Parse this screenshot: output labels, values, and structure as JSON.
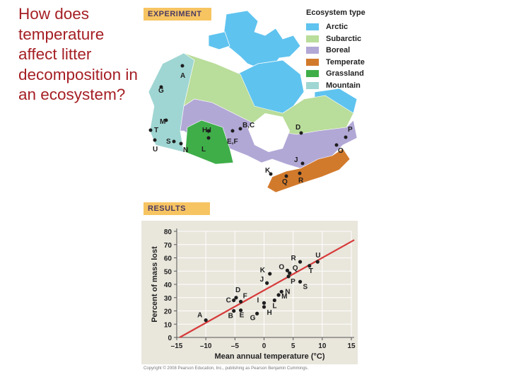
{
  "question": "How does temperature affect litter decomposition in an ecosystem?",
  "experiment_banner": "EXPERIMENT",
  "results_banner": "RESULTS",
  "legend": {
    "title": "Ecosystem type",
    "items": [
      {
        "label": "Arctic",
        "color": "#5fc3ef"
      },
      {
        "label": "Subarctic",
        "color": "#b9dd9a"
      },
      {
        "label": "Boreal",
        "color": "#b2a8d6"
      },
      {
        "label": "Temperate",
        "color": "#d27a2c"
      },
      {
        "label": "Grassland",
        "color": "#3fae49"
      },
      {
        "label": "Mountain",
        "color": "#9fd6d3"
      }
    ]
  },
  "map_sites": [
    "A",
    "B,C",
    "D",
    "E,F",
    "G",
    "H,I",
    "J",
    "K",
    "L",
    "M",
    "N",
    "O",
    "P",
    "Q",
    "R",
    "S",
    "T",
    "U"
  ],
  "copyright": "Copyright © 2008 Pearson Education, Inc., publishing as Pearson Benjamin Cummings.",
  "chart_data": {
    "type": "scatter",
    "title": "",
    "xlabel": "Mean annual temperature (°C)",
    "ylabel": "Percent of mass lost",
    "xlim": [
      -15,
      15
    ],
    "ylim": [
      0,
      80
    ],
    "xticks": [
      -15,
      -10,
      -5,
      0,
      5,
      10,
      15
    ],
    "yticks": [
      0,
      10,
      20,
      30,
      40,
      50,
      60,
      70,
      80
    ],
    "grid": true,
    "points": [
      {
        "label": "A",
        "x": -10.0,
        "y": 13
      },
      {
        "label": "B",
        "x": -5.2,
        "y": 20
      },
      {
        "label": "C",
        "x": -5.2,
        "y": 28
      },
      {
        "label": "D",
        "x": -4.8,
        "y": 30
      },
      {
        "label": "E",
        "x": -4.0,
        "y": 20.5
      },
      {
        "label": "F",
        "x": -4.0,
        "y": 27
      },
      {
        "label": "G",
        "x": -1.2,
        "y": 18
      },
      {
        "label": "H",
        "x": 0.0,
        "y": 23
      },
      {
        "label": "I",
        "x": 0.0,
        "y": 26
      },
      {
        "label": "J",
        "x": 0.5,
        "y": 41
      },
      {
        "label": "K",
        "x": 1.0,
        "y": 48
      },
      {
        "label": "L",
        "x": 1.8,
        "y": 28
      },
      {
        "label": "M",
        "x": 2.5,
        "y": 32
      },
      {
        "label": "N",
        "x": 3.0,
        "y": 34.5
      },
      {
        "label": "O",
        "x": 4.0,
        "y": 50.5
      },
      {
        "label": "P",
        "x": 4.2,
        "y": 46
      },
      {
        "label": "Q",
        "x": 4.4,
        "y": 48.5
      },
      {
        "label": "R",
        "x": 6.2,
        "y": 57
      },
      {
        "label": "S",
        "x": 6.2,
        "y": 42
      },
      {
        "label": "T",
        "x": 7.8,
        "y": 54
      },
      {
        "label": "U",
        "x": 9.2,
        "y": 57
      }
    ],
    "trendline": {
      "x": [
        -14.5,
        15.5
      ],
      "y": [
        0,
        73.5
      ],
      "color": "#d63a3a"
    }
  }
}
